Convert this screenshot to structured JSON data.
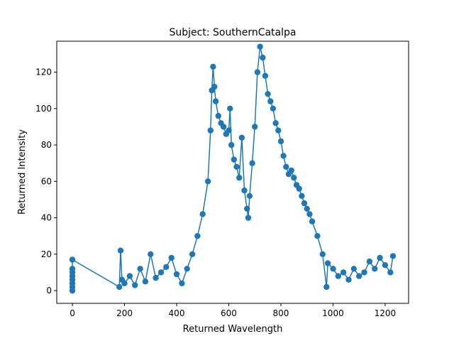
{
  "chart_data": {
    "type": "scatter",
    "title": "Subject: SouthernCatalpa",
    "xlabel": "Returned Wavelength",
    "ylabel": "Returned Intensity",
    "xlim": [
      -60,
      1290
    ],
    "ylim": [
      -7,
      137
    ],
    "xticks": [
      0,
      200,
      400,
      600,
      800,
      1000,
      1200
    ],
    "yticks": [
      0,
      20,
      40,
      60,
      80,
      100,
      120
    ],
    "grid": false,
    "legend": "none",
    "series": [
      {
        "color": "#1f77b4",
        "marker": "circle",
        "connected": true,
        "points": [
          [
            0,
            0
          ],
          [
            0,
            2
          ],
          [
            0,
            4
          ],
          [
            0,
            6
          ],
          [
            0,
            8
          ],
          [
            0,
            10
          ],
          [
            0,
            12
          ],
          [
            0,
            17
          ],
          [
            180,
            2
          ],
          [
            185,
            22
          ],
          [
            190,
            6
          ],
          [
            200,
            4
          ],
          [
            220,
            8
          ],
          [
            240,
            3
          ],
          [
            260,
            12
          ],
          [
            280,
            5
          ],
          [
            300,
            20
          ],
          [
            320,
            7
          ],
          [
            340,
            10
          ],
          [
            360,
            13
          ],
          [
            380,
            18
          ],
          [
            400,
            9
          ],
          [
            420,
            4
          ],
          [
            440,
            12
          ],
          [
            460,
            20
          ],
          [
            480,
            30
          ],
          [
            500,
            42
          ],
          [
            520,
            60
          ],
          [
            530,
            88
          ],
          [
            535,
            110
          ],
          [
            540,
            123
          ],
          [
            545,
            112
          ],
          [
            550,
            104
          ],
          [
            560,
            96
          ],
          [
            570,
            92
          ],
          [
            580,
            90
          ],
          [
            590,
            86
          ],
          [
            600,
            88
          ],
          [
            605,
            100
          ],
          [
            610,
            80
          ],
          [
            620,
            72
          ],
          [
            630,
            68
          ],
          [
            640,
            62
          ],
          [
            650,
            84
          ],
          [
            660,
            55
          ],
          [
            670,
            45
          ],
          [
            675,
            40
          ],
          [
            680,
            52
          ],
          [
            690,
            70
          ],
          [
            700,
            90
          ],
          [
            710,
            120
          ],
          [
            720,
            134
          ],
          [
            730,
            128
          ],
          [
            740,
            118
          ],
          [
            750,
            108
          ],
          [
            760,
            104
          ],
          [
            770,
            100
          ],
          [
            780,
            92
          ],
          [
            790,
            88
          ],
          [
            800,
            82
          ],
          [
            810,
            74
          ],
          [
            820,
            68
          ],
          [
            830,
            64
          ],
          [
            840,
            66
          ],
          [
            850,
            62
          ],
          [
            860,
            58
          ],
          [
            870,
            56
          ],
          [
            880,
            52
          ],
          [
            890,
            48
          ],
          [
            900,
            45
          ],
          [
            910,
            42
          ],
          [
            920,
            38
          ],
          [
            940,
            30
          ],
          [
            960,
            20
          ],
          [
            975,
            2
          ],
          [
            980,
            15
          ],
          [
            1000,
            12
          ],
          [
            1020,
            8
          ],
          [
            1040,
            10
          ],
          [
            1060,
            6
          ],
          [
            1080,
            12
          ],
          [
            1100,
            8
          ],
          [
            1120,
            10
          ],
          [
            1140,
            16
          ],
          [
            1160,
            12
          ],
          [
            1180,
            18
          ],
          [
            1200,
            14
          ],
          [
            1220,
            10
          ],
          [
            1230,
            19
          ]
        ]
      }
    ]
  }
}
